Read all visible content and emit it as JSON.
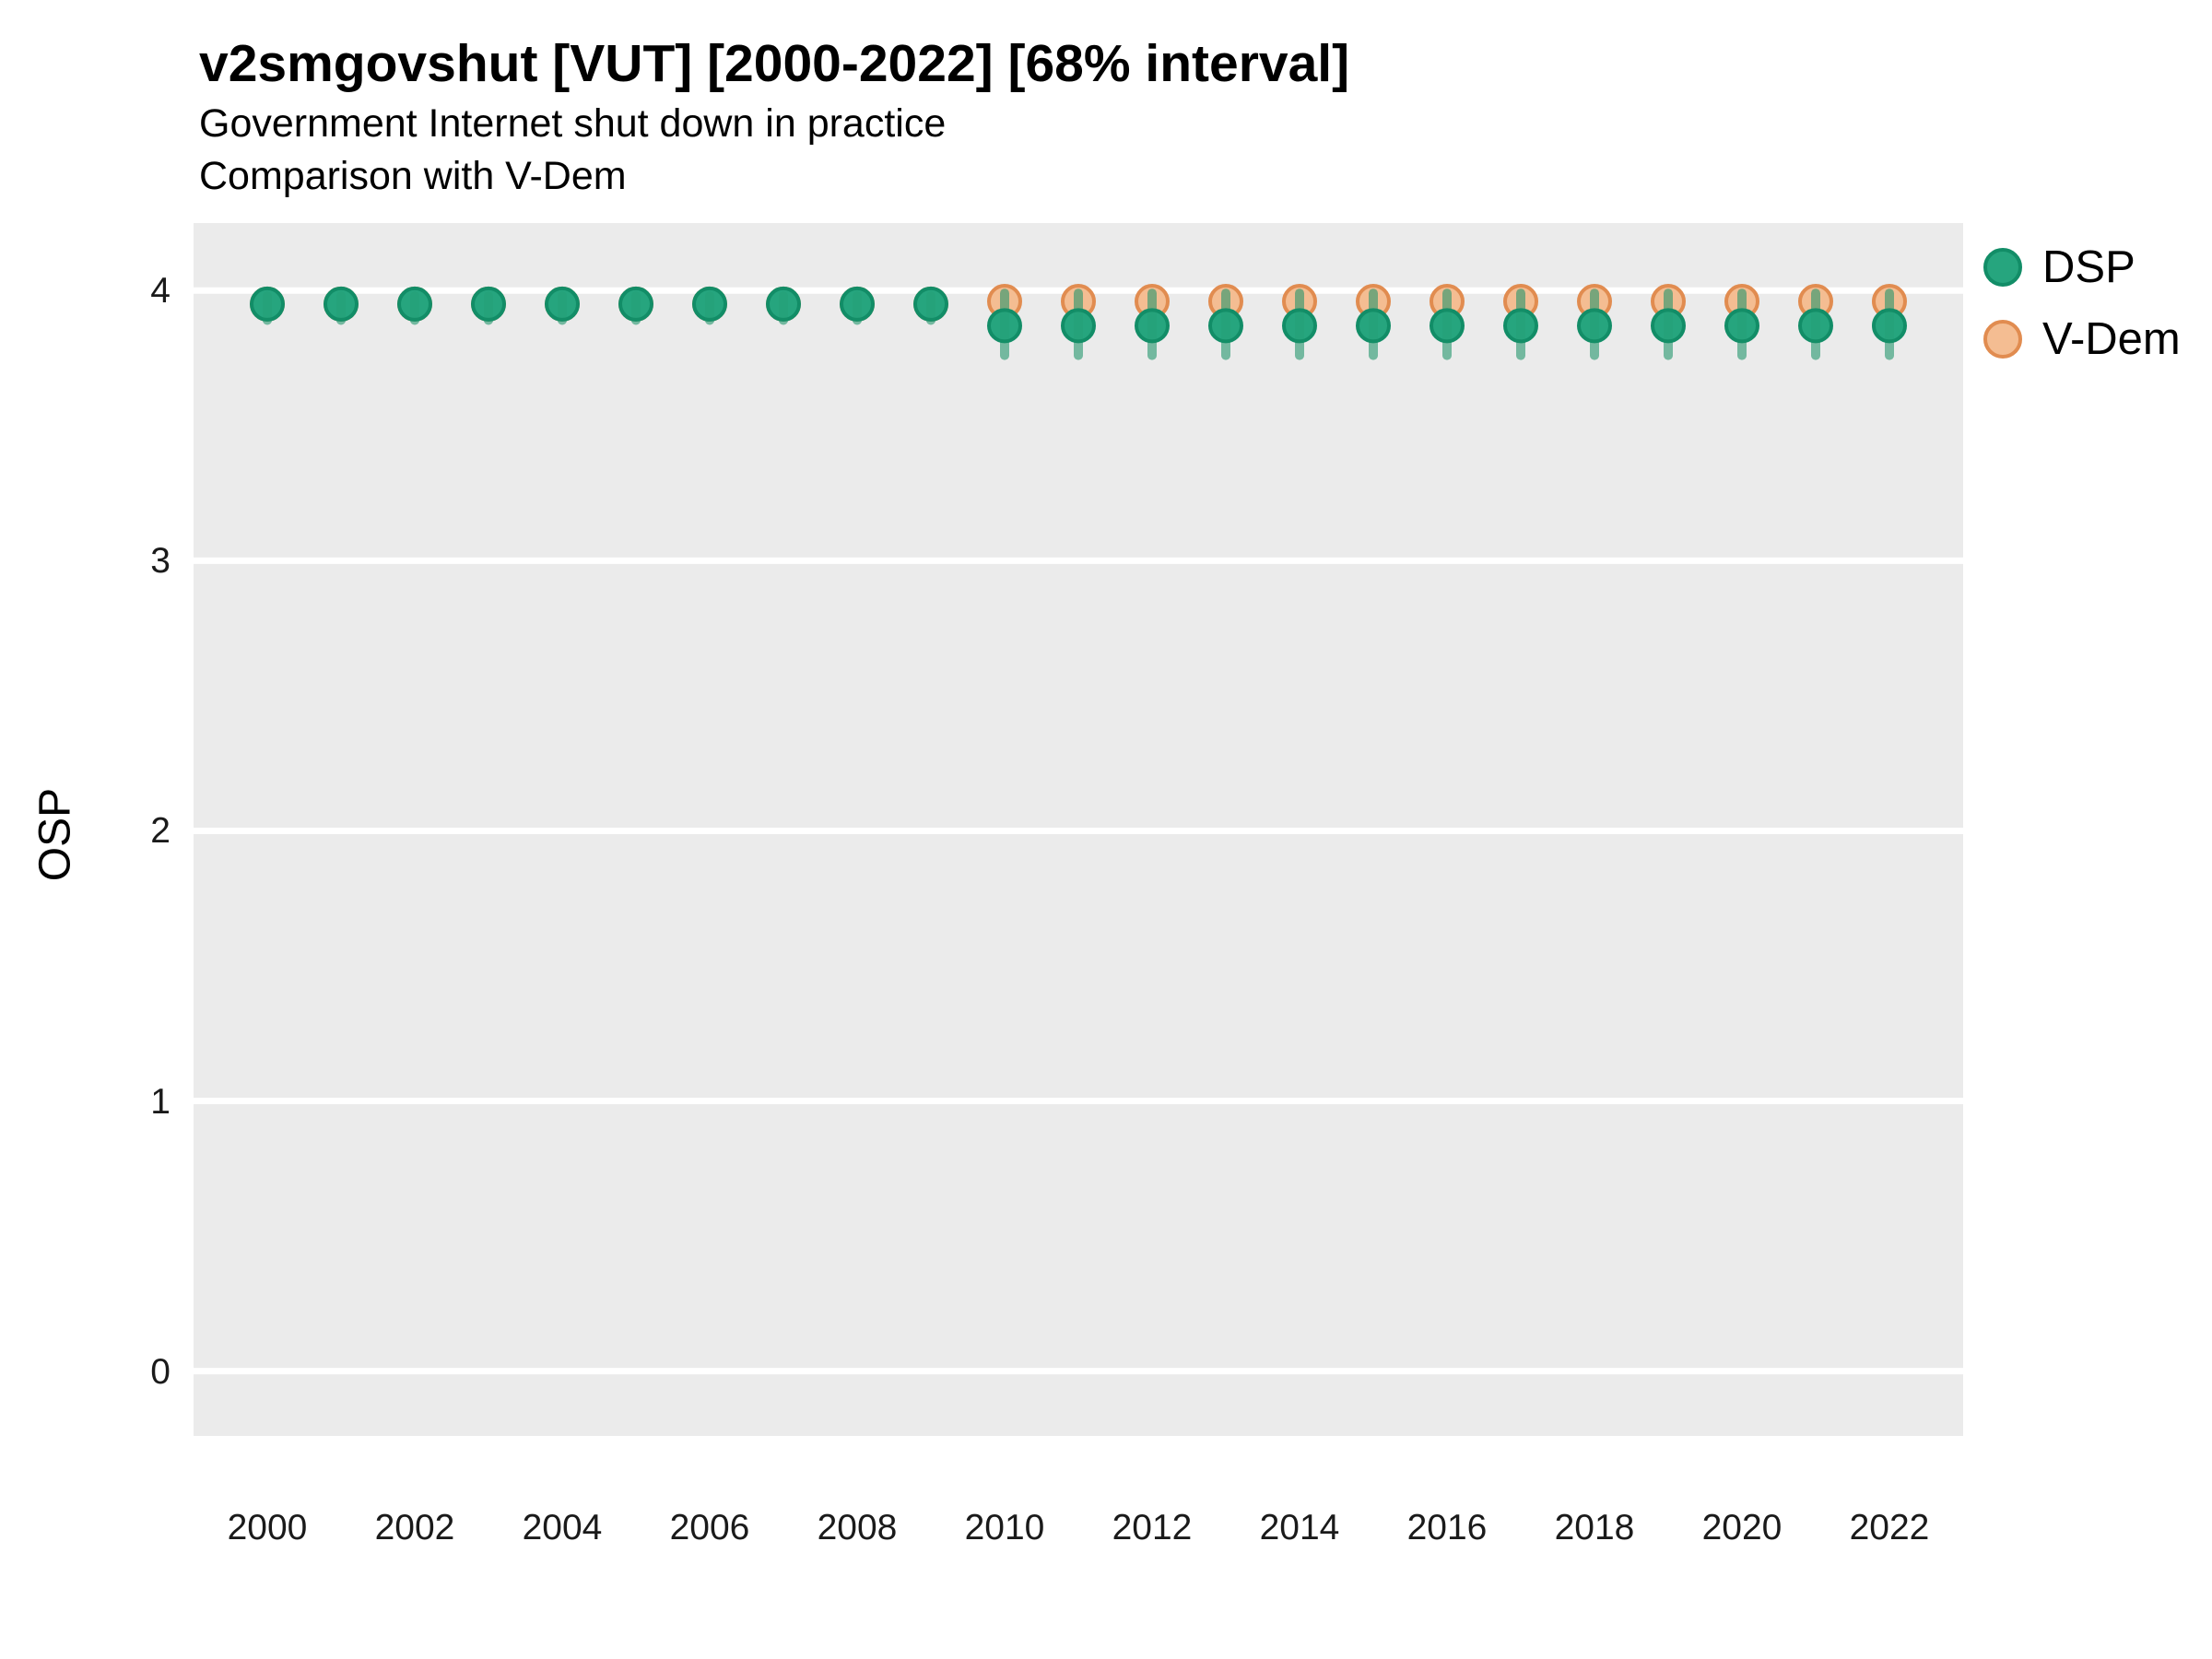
{
  "header": {
    "title": "v2smgovshut [VUT] [2000-2022] [68% interval]",
    "subtitle1": "Government Internet shut down in practice",
    "subtitle2": "Comparison with V-Dem"
  },
  "chart_data": {
    "type": "scatter",
    "title": "v2smgovshut [VUT] [2000-2022] [68% interval]",
    "subtitle": "Government Internet shut down in practice — Comparison with V-Dem",
    "xlabel": "",
    "ylabel": "OSP",
    "xlim": [
      1999,
      2023
    ],
    "ylim": [
      -0.24,
      4.25
    ],
    "x_ticks": [
      2000,
      2002,
      2004,
      2006,
      2008,
      2010,
      2012,
      2014,
      2016,
      2018,
      2020,
      2022
    ],
    "y_ticks": [
      0,
      1,
      2,
      3,
      4
    ],
    "grid": "horizontal-major-only",
    "legend_position": "right",
    "panel_background": "#ebebeb",
    "gridline_color": "#ffffff",
    "series": [
      {
        "name": "DSP",
        "type": "pointrange",
        "interval": "68%",
        "color_fill": "#26a57e",
        "color_stroke": "#128d67",
        "bar_color": "#1f966c",
        "x": [
          2000,
          2001,
          2002,
          2003,
          2004,
          2005,
          2006,
          2007,
          2008,
          2009,
          2010,
          2011,
          2012,
          2013,
          2014,
          2015,
          2016,
          2017,
          2018,
          2019,
          2020,
          2021,
          2022
        ],
        "y": [
          3.95,
          3.95,
          3.95,
          3.95,
          3.95,
          3.95,
          3.95,
          3.95,
          3.95,
          3.95,
          3.87,
          3.87,
          3.87,
          3.87,
          3.87,
          3.87,
          3.87,
          3.87,
          3.87,
          3.87,
          3.87,
          3.87,
          3.87
        ],
        "lo": [
          3.89,
          3.89,
          3.89,
          3.89,
          3.89,
          3.89,
          3.89,
          3.89,
          3.89,
          3.89,
          3.76,
          3.76,
          3.76,
          3.76,
          3.76,
          3.76,
          3.76,
          3.76,
          3.76,
          3.76,
          3.76,
          3.76,
          3.76
        ],
        "hi": [
          3.98,
          3.98,
          3.98,
          3.98,
          3.98,
          3.98,
          3.98,
          3.98,
          3.98,
          3.98,
          3.99,
          3.99,
          3.99,
          3.99,
          3.99,
          3.99,
          3.99,
          3.99,
          3.99,
          3.99,
          3.99,
          3.99,
          3.99
        ]
      },
      {
        "name": "V-Dem",
        "type": "point",
        "color_fill": "#f4bd92",
        "color_stroke": "#e18c50",
        "x": [
          2000,
          2001,
          2002,
          2003,
          2004,
          2005,
          2006,
          2007,
          2008,
          2009,
          2010,
          2011,
          2012,
          2013,
          2014,
          2015,
          2016,
          2017,
          2018,
          2019,
          2020,
          2021,
          2022
        ],
        "y": [
          3.95,
          3.95,
          3.95,
          3.95,
          3.95,
          3.95,
          3.95,
          3.95,
          3.95,
          3.95,
          3.96,
          3.96,
          3.96,
          3.96,
          3.96,
          3.96,
          3.96,
          3.96,
          3.96,
          3.96,
          3.96,
          3.96,
          3.96
        ]
      }
    ],
    "legend": [
      {
        "label": "DSP",
        "fill": "#26a57e",
        "stroke": "#128d67"
      },
      {
        "label": "V-Dem",
        "fill": "#f4bd92",
        "stroke": "#e18c50"
      }
    ]
  }
}
